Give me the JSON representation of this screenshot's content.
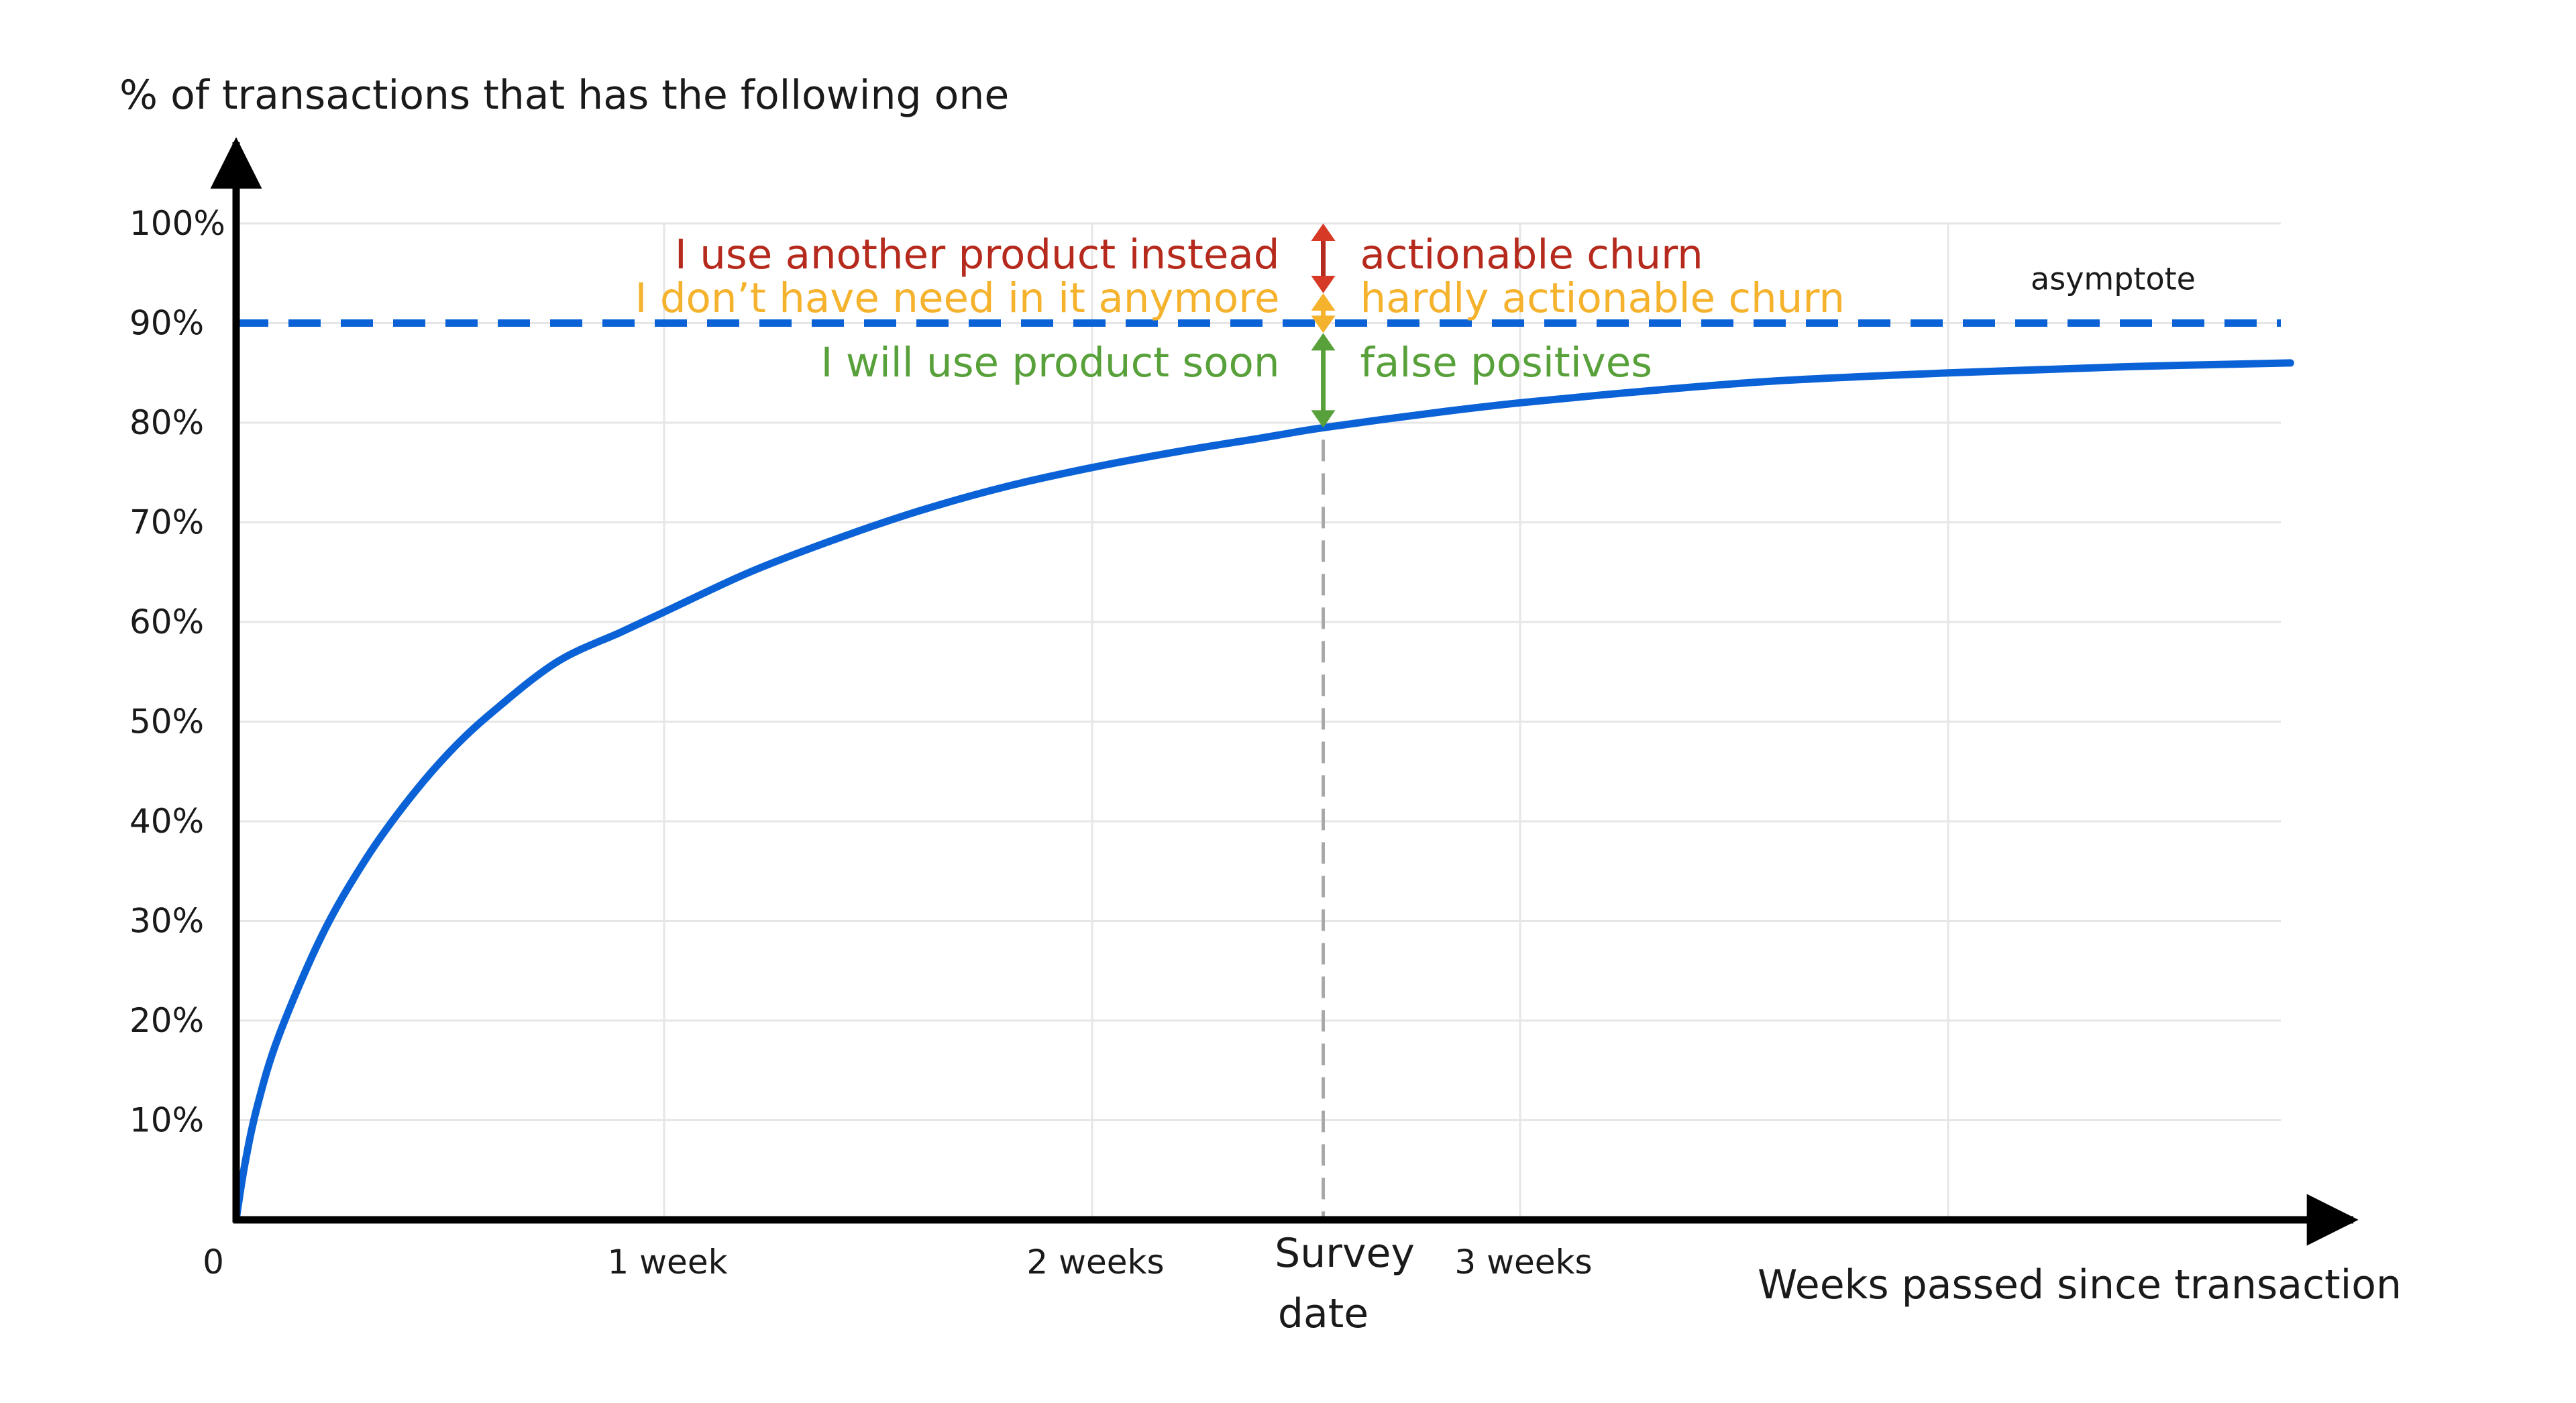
{
  "chart_data": {
    "type": "line",
    "ylabel": "% of transactions that has the following one",
    "xlabel": "Weeks passed since transaction",
    "ylim": [
      0,
      100
    ],
    "xlim": [
      0,
      4.83
    ],
    "y_ticks": [
      "10%",
      "20%",
      "30%",
      "40%",
      "50%",
      "60%",
      "70%",
      "80%",
      "90%",
      "100%"
    ],
    "y_tick_values": [
      10,
      20,
      30,
      40,
      50,
      60,
      70,
      80,
      90,
      100
    ],
    "x_ticks": [
      {
        "label": "0",
        "value": 0
      },
      {
        "label": "1 week",
        "value": 1
      },
      {
        "label": "2 weeks",
        "value": 2
      },
      {
        "label": "3 weeks",
        "value": 3
      }
    ],
    "x_gridlines": [
      1,
      2,
      3,
      4
    ],
    "grid": true,
    "series": [
      {
        "color": "#0a62d6",
        "x": [
          0,
          0.02,
          0.05,
          0.1,
          0.2,
          0.3,
          0.4,
          0.5,
          0.6,
          0.75,
          0.9,
          1.0,
          1.2,
          1.4,
          1.6,
          1.8,
          2.0,
          2.2,
          2.4,
          2.54,
          2.8,
          3.0,
          3.3,
          3.6,
          4.0,
          4.4,
          4.8
        ],
        "values": [
          0,
          5.5,
          11.5,
          18.5,
          28.5,
          36,
          42,
          47,
          51,
          56,
          59,
          61,
          65,
          68.3,
          71.2,
          73.6,
          75.5,
          77.1,
          78.5,
          79.5,
          81,
          82,
          83.2,
          84.2,
          85,
          85.6,
          86
        ]
      }
    ],
    "asymptote": {
      "value": 90,
      "label": "asymptote",
      "color": "#0a62d6"
    },
    "survey": {
      "x": 2.54,
      "label_line1": "Survey",
      "label_line2": "date"
    },
    "annotations": [
      {
        "left": "I use another product instead",
        "right": "actionable churn",
        "color": "#b52a1c",
        "from": 100,
        "to": 93
      },
      {
        "left": "I don’t have need in it anymore",
        "right": "hardly actionable churn",
        "color": "#f5b22c",
        "from": 93,
        "to": 89
      },
      {
        "left": "I will use product soon",
        "right": "false positives",
        "color": "#58a13a",
        "from": 89,
        "to": 79.5
      }
    ],
    "arrow_marker_colors": [
      "#d63a26",
      "#f5b22c",
      "#58a13a"
    ]
  }
}
